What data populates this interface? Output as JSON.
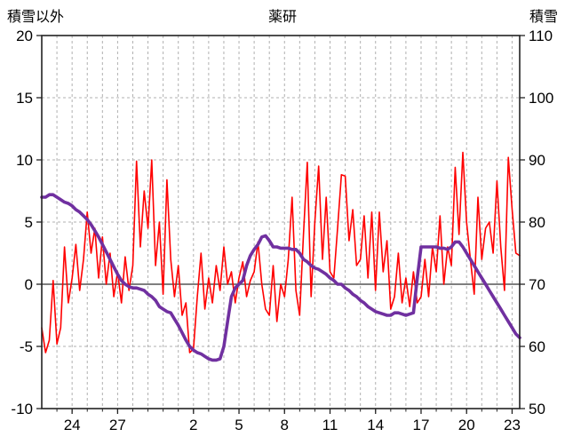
{
  "header": {
    "left_axis_title": "積雪以外",
    "chart_title": "薬研",
    "right_axis_title": "積雪"
  },
  "chart_data": {
    "type": "line",
    "title": "薬研",
    "x_unit": "day-index",
    "x_start": 0,
    "x_end": 31.5,
    "x_step": 0.25,
    "x_tick_positions": [
      2,
      5,
      10,
      13,
      16,
      19,
      22,
      25,
      28,
      31
    ],
    "x_tick_labels": [
      "24",
      "27",
      "2",
      "5",
      "8",
      "11",
      "14",
      "17",
      "20",
      "23"
    ],
    "left_axis": {
      "title": "積雪以外",
      "min": -10,
      "max": 20,
      "ticks": [
        20,
        15,
        10,
        5,
        0,
        -5,
        -10
      ]
    },
    "right_axis": {
      "title": "積雪",
      "min": 50,
      "max": 110,
      "ticks": [
        110,
        100,
        90,
        80,
        70,
        60,
        50
      ]
    },
    "baseline_left_value": 0,
    "grid": {
      "vertical_interval_days": 1,
      "style": "dashed",
      "color": "#b0b0b0",
      "frame_color": "#222222",
      "baseline_color": "#555555"
    },
    "legend": "none",
    "series": [
      {
        "name": "red-line",
        "axis": "left",
        "color": "#ff0000",
        "width": 1.6,
        "values": [
          -3.5,
          -5.5,
          -4.5,
          0.3,
          -4.8,
          -3.5,
          3.0,
          -1.5,
          0.5,
          3.2,
          -0.5,
          2.0,
          5.8,
          2.5,
          4.5,
          0.5,
          3.8,
          0.0,
          2.5,
          -1.0,
          1.0,
          -1.5,
          2.2,
          -0.5,
          1.5,
          9.9,
          3.0,
          7.5,
          4.5,
          10.0,
          1.5,
          5.0,
          -0.8,
          8.4,
          2.0,
          -1.0,
          1.5,
          -2.5,
          -1.5,
          -5.5,
          -5.2,
          -1.0,
          2.5,
          -2.0,
          0.5,
          -1.5,
          1.5,
          -0.5,
          3.0,
          0.0,
          1.0,
          -1.5,
          0.5,
          1.8,
          -1.0,
          0.3,
          1.0,
          3.4,
          0.0,
          -2.0,
          -2.5,
          1.5,
          -3.0,
          0.0,
          -1.0,
          2.0,
          7.0,
          -0.5,
          -2.5,
          4.0,
          9.8,
          -1.0,
          5.0,
          9.5,
          2.0,
          7.0,
          1.0,
          0.5,
          4.5,
          8.8,
          8.7,
          3.5,
          6.0,
          1.5,
          2.0,
          5.5,
          0.5,
          5.8,
          -0.5,
          5.8,
          1.0,
          3.5,
          -2.0,
          -1.0,
          2.5,
          -1.5,
          0.5,
          -1.8,
          1.0,
          -1.5,
          -1.0,
          2.0,
          -1.0,
          3.0,
          1.0,
          5.5,
          0.0,
          3.0,
          1.5,
          9.4,
          4.0,
          10.6,
          5.0,
          2.0,
          -0.8,
          7.0,
          2.0,
          4.5,
          5.0,
          2.5,
          8.3,
          3.0,
          -0.5,
          10.2,
          6.0,
          2.5,
          2.3
        ]
      },
      {
        "name": "purple-line",
        "axis": "right",
        "color": "#7030a0",
        "width": 3.6,
        "values": [
          84,
          84,
          84.4,
          84.4,
          84,
          83.6,
          83.2,
          83,
          82.6,
          82,
          81.6,
          81,
          80.4,
          79.6,
          78.6,
          77.6,
          76.4,
          75.2,
          74,
          72.8,
          71.6,
          70.6,
          70,
          69.6,
          69.4,
          69.4,
          69.2,
          69,
          68.4,
          68,
          67.4,
          66.4,
          66,
          65.6,
          65.4,
          64.4,
          63.4,
          62.2,
          61,
          60,
          59.4,
          59,
          58.8,
          58.4,
          58,
          57.8,
          57.8,
          58,
          60,
          64,
          68,
          69.4,
          70,
          70.6,
          73,
          74.6,
          75.6,
          76.4,
          77.6,
          77.8,
          77,
          76,
          76,
          75.8,
          75.8,
          75.8,
          75.6,
          75.6,
          75,
          74,
          73.6,
          73,
          72.6,
          72.4,
          72,
          71.6,
          71,
          70.6,
          70,
          70,
          69.4,
          69,
          68.4,
          68,
          67.4,
          67,
          66.4,
          66,
          65.6,
          65.4,
          65.2,
          65,
          65,
          65.4,
          65.4,
          65.2,
          65,
          65.2,
          65.4,
          71,
          76,
          76,
          76,
          76,
          76,
          75.8,
          75.8,
          75.6,
          76,
          76.8,
          76.8,
          76,
          75,
          74,
          73,
          72,
          71,
          70,
          69,
          68,
          67,
          66,
          65,
          64,
          63,
          62,
          61.4
        ]
      }
    ]
  }
}
